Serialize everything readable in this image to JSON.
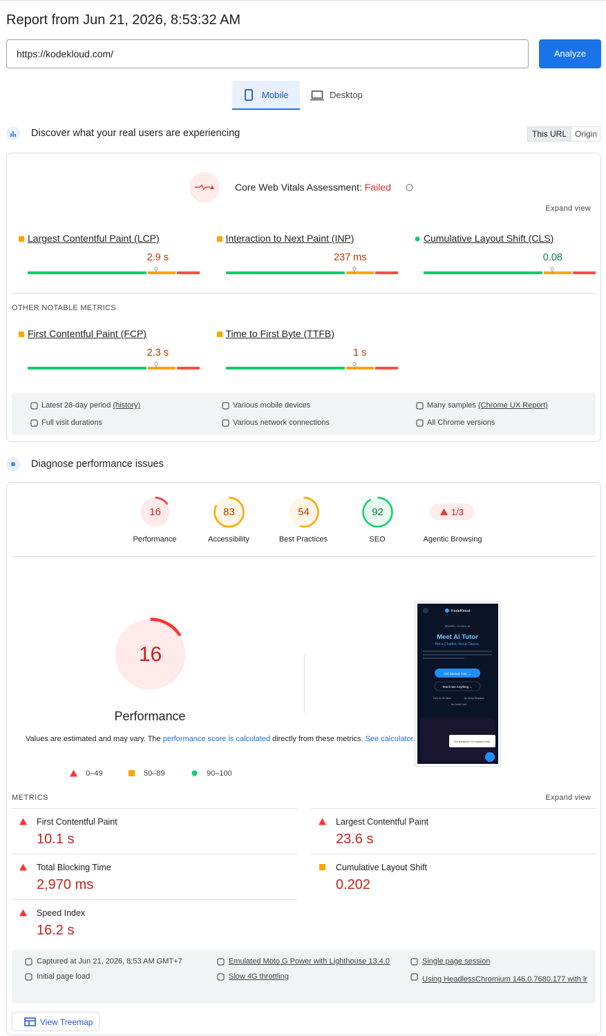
{
  "header": {
    "title": "Report from Jun 21, 2026, 8:53:32 AM",
    "url": "https://kodekloud.com/",
    "analyze_button": "Analyze"
  },
  "tabs": [
    "Mobile",
    "Desktop"
  ],
  "field_data": {
    "title": "Discover what your real users are experiencing",
    "toggle": [
      "This URL",
      "Origin"
    ],
    "assessment_label": "Core Web Vitals Assessment:",
    "assessment_status": "Failed",
    "expand": "Expand view",
    "core_metrics": [
      {
        "name": "Largest Contentful Paint (LCP)",
        "value": "2.9 s",
        "shape": "square",
        "color": "#ffa400",
        "value_color": "#c33300"
      },
      {
        "name": "Interaction to Next Paint (INP)",
        "value": "237 ms",
        "shape": "square",
        "color": "#ffa400",
        "value_color": "#c33300"
      },
      {
        "name": "Cumulative Layout Shift (CLS)",
        "value": "0.08",
        "shape": "circle",
        "color": "#0cce6b",
        "value_color": "#0d7d3b"
      }
    ],
    "other_heading": "OTHER NOTABLE METRICS",
    "other_metrics": [
      {
        "name": "First Contentful Paint (FCP)",
        "value": "2.3 s",
        "shape": "square",
        "color": "#ffa400",
        "value_color": "#c33300"
      },
      {
        "name": "Time to First Byte (TTFB)",
        "value": "1 s",
        "shape": "square",
        "color": "#ffa400",
        "value_color": "#c33300"
      }
    ],
    "info": [
      {
        "text": "Latest 28-day period",
        "link": "(history)"
      },
      {
        "text": "Various mobile devices"
      },
      {
        "text": "Many samples",
        "link": "(Chrome UX Report)"
      },
      {
        "text": "Full visit durations"
      },
      {
        "text": "Various network connections"
      },
      {
        "text": "All Chrome versions"
      }
    ]
  },
  "diagnose": {
    "title": "Diagnose performance issues",
    "scores": [
      {
        "label": "Performance",
        "score": 16,
        "color": "#ff3333",
        "text_color": "#c5221f"
      },
      {
        "label": "Accessibility",
        "score": 83,
        "color": "#ffa400",
        "text_color": "#c33300"
      },
      {
        "label": "Best Practices",
        "score": 54,
        "color": "#ffa400",
        "text_color": "#c33300"
      },
      {
        "label": "SEO",
        "score": 92,
        "color": "#0cce6b",
        "text_color": "#0d7d3b"
      }
    ],
    "agentic": {
      "label": "Agentic Browsing",
      "value": "1/3"
    },
    "note": {
      "before": "Values are estimated and may vary. The ",
      "link1": "performance score is calculated",
      "middle": " directly from these metrics. ",
      "link2": "See calculator."
    },
    "legend": [
      {
        "label": "0–49",
        "shape": "triangle",
        "color": "#ff3333"
      },
      {
        "label": "50–89",
        "shape": "square",
        "color": "#ffa400"
      },
      {
        "label": "90–100",
        "shape": "circle",
        "color": "#0cce6b"
      }
    ],
    "screenshot": {
      "brand": "KodeKloud",
      "tagline": "DEVOPS • CLOUD • AI",
      "headline": "Meet AI Tutor",
      "subline": "Not a Chatbot. Not a Course.",
      "cta": "Get Started Free →",
      "cta2": "Teach Me Anything →",
      "features": [
        "Free for All Users",
        "No Setup Required",
        "No Credit Card"
      ],
      "chat": "Got questions? I'm happy to help"
    },
    "metrics_heading": "METRICS",
    "expand": "Expand view",
    "lab_metrics": [
      {
        "name": "First Contentful Paint",
        "value": "10.1 s",
        "shape": "triangle",
        "color": "#ff3333",
        "value_color": "#c5221f"
      },
      {
        "name": "Largest Contentful Paint",
        "value": "23.6 s",
        "shape": "triangle",
        "color": "#ff3333",
        "value_color": "#c5221f"
      },
      {
        "name": "Total Blocking Time",
        "value": "2,970 ms",
        "shape": "triangle",
        "color": "#ff3333",
        "value_color": "#c5221f"
      },
      {
        "name": "Cumulative Layout Shift",
        "value": "0.202",
        "shape": "square",
        "color": "#ffa400",
        "value_color": "#c5221f"
      },
      {
        "name": "Speed Index",
        "value": "16.2 s",
        "shape": "triangle",
        "color": "#ff3333",
        "value_color": "#c5221f"
      }
    ],
    "lab_info": [
      {
        "text": "Captured at Jun 21, 2026, 8:53 AM GMT+7",
        "link": false
      },
      {
        "text": "Emulated Moto G Power with Lighthouse 13.4.0",
        "link": true
      },
      {
        "text": "Single page session",
        "link": true
      },
      {
        "text": "Initial page load",
        "link": false
      },
      {
        "text": "Slow 4G throttling",
        "link": true
      },
      {
        "text": "Using HeadlessChromium 146.0.7680.177 with lr",
        "link": true
      }
    ],
    "treemap_button": "View Treemap"
  }
}
